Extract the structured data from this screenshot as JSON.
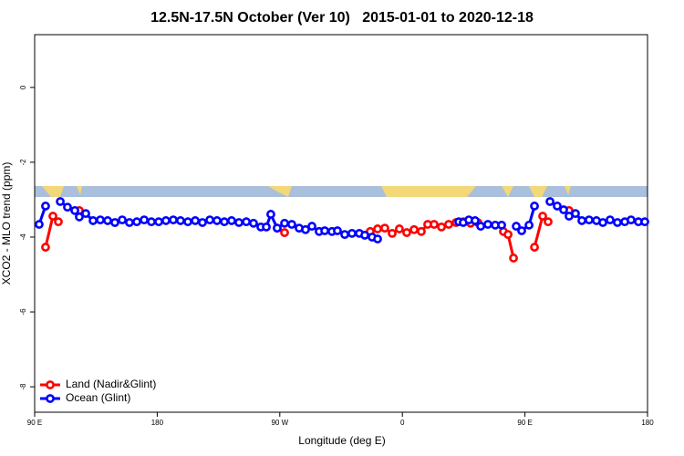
{
  "chart_data": {
    "type": "line",
    "title": "12.5N-17.5N October (Ver 10)   2015-01-01 to 2020-12-18",
    "x_label": "Longitude (deg E)",
    "y_label": "XCO2 - MLO trend (ppm)",
    "xlim": [
      90,
      540
    ],
    "ylim": [
      -8.68,
      1.41
    ],
    "xticks": [
      {
        "value": 90,
        "label": "90 E"
      },
      180,
      {
        "value": 270,
        "label": "90 W"
      },
      {
        "value": 360,
        "label": "0"
      },
      {
        "value": 450,
        "label": "90 E"
      },
      {
        "value": 540,
        "label": "180"
      }
    ],
    "yticks": [
      0,
      -2,
      -4,
      -6,
      -8
    ],
    "legend": "bottom-left",
    "series": [
      {
        "name": "Land (Nadir&Glint)",
        "color": "#ff0000",
        "x": [
          98.0,
          103.4,
          107.4,
          null,
          122.8,
          null,
          268.1,
          273.5,
          null,
          336.4,
          341.8,
          347.1,
          352.5,
          357.8,
          363.2,
          368.6,
          373.9,
          378.6,
          383.3,
          388.7,
          394.0,
          399.4,
          404.7,
          410.1,
          415.4,
          null,
          434.2,
          437.6,
          441.6,
          null,
          457.0,
          463.0,
          467.0,
          null,
          482.4
        ],
        "values": [
          -4.27,
          -3.44,
          -3.59,
          null,
          -3.29,
          null,
          -3.76,
          -3.88,
          null,
          -3.85,
          -3.78,
          -3.76,
          -3.9,
          -3.78,
          -3.88,
          -3.8,
          -3.85,
          -3.66,
          -3.66,
          -3.73,
          -3.66,
          -3.61,
          -3.59,
          -3.63,
          -3.61,
          null,
          -3.85,
          -3.93,
          -4.56,
          null,
          -4.27,
          -3.44,
          -3.59,
          null,
          -3.29
        ]
      },
      {
        "name": "Ocean (Glint)",
        "color": "#0000ff",
        "x": [
          93.3,
          98.0,
          null,
          108.8,
          114.1,
          119.5,
          122.8,
          127.5,
          132.9,
          138.2,
          143.6,
          148.9,
          154.3,
          159.6,
          165.0,
          170.4,
          175.7,
          181.1,
          186.4,
          191.8,
          197.1,
          202.5,
          207.9,
          213.2,
          218.6,
          223.9,
          229.3,
          234.6,
          240.0,
          245.4,
          250.7,
          256.1,
          260.1,
          263.4,
          268.1,
          273.5,
          278.8,
          284.2,
          288.9,
          293.6,
          298.9,
          303.0,
          308.3,
          312.3,
          317.7,
          323.0,
          328.4,
          332.4,
          337.8,
          341.8,
          null,
          401.4,
          404.7,
          408.8,
          413.4,
          417.5,
          422.8,
          428.2,
          432.9,
          null,
          443.6,
          447.6,
          453.0,
          457.0,
          null,
          468.4,
          473.7,
          478.4,
          482.4,
          487.1,
          491.8,
          497.1,
          502.5,
          507.2,
          512.5,
          517.9,
          523.3,
          527.9,
          533.3,
          538.0
        ],
        "values": [
          -3.66,
          -3.17,
          null,
          -3.05,
          -3.2,
          -3.29,
          -3.46,
          -3.37,
          -3.56,
          -3.54,
          -3.56,
          -3.61,
          -3.54,
          -3.61,
          -3.59,
          -3.54,
          -3.59,
          -3.59,
          -3.56,
          -3.54,
          -3.56,
          -3.59,
          -3.56,
          -3.61,
          -3.54,
          -3.56,
          -3.59,
          -3.56,
          -3.61,
          -3.59,
          -3.63,
          -3.73,
          -3.73,
          -3.39,
          -3.76,
          -3.63,
          -3.66,
          -3.76,
          -3.8,
          -3.71,
          -3.85,
          -3.83,
          -3.85,
          -3.83,
          -3.93,
          -3.9,
          -3.9,
          -3.95,
          -4.0,
          -4.05,
          null,
          -3.59,
          -3.61,
          -3.54,
          -3.56,
          -3.71,
          -3.66,
          -3.68,
          -3.68,
          null,
          -3.71,
          -3.83,
          -3.68,
          -3.17,
          null,
          -3.05,
          -3.17,
          -3.27,
          -3.44,
          -3.37,
          -3.56,
          -3.54,
          -3.56,
          -3.61,
          -3.54,
          -3.61,
          -3.59,
          -3.54,
          -3.59,
          -3.59
        ]
      }
    ]
  }
}
